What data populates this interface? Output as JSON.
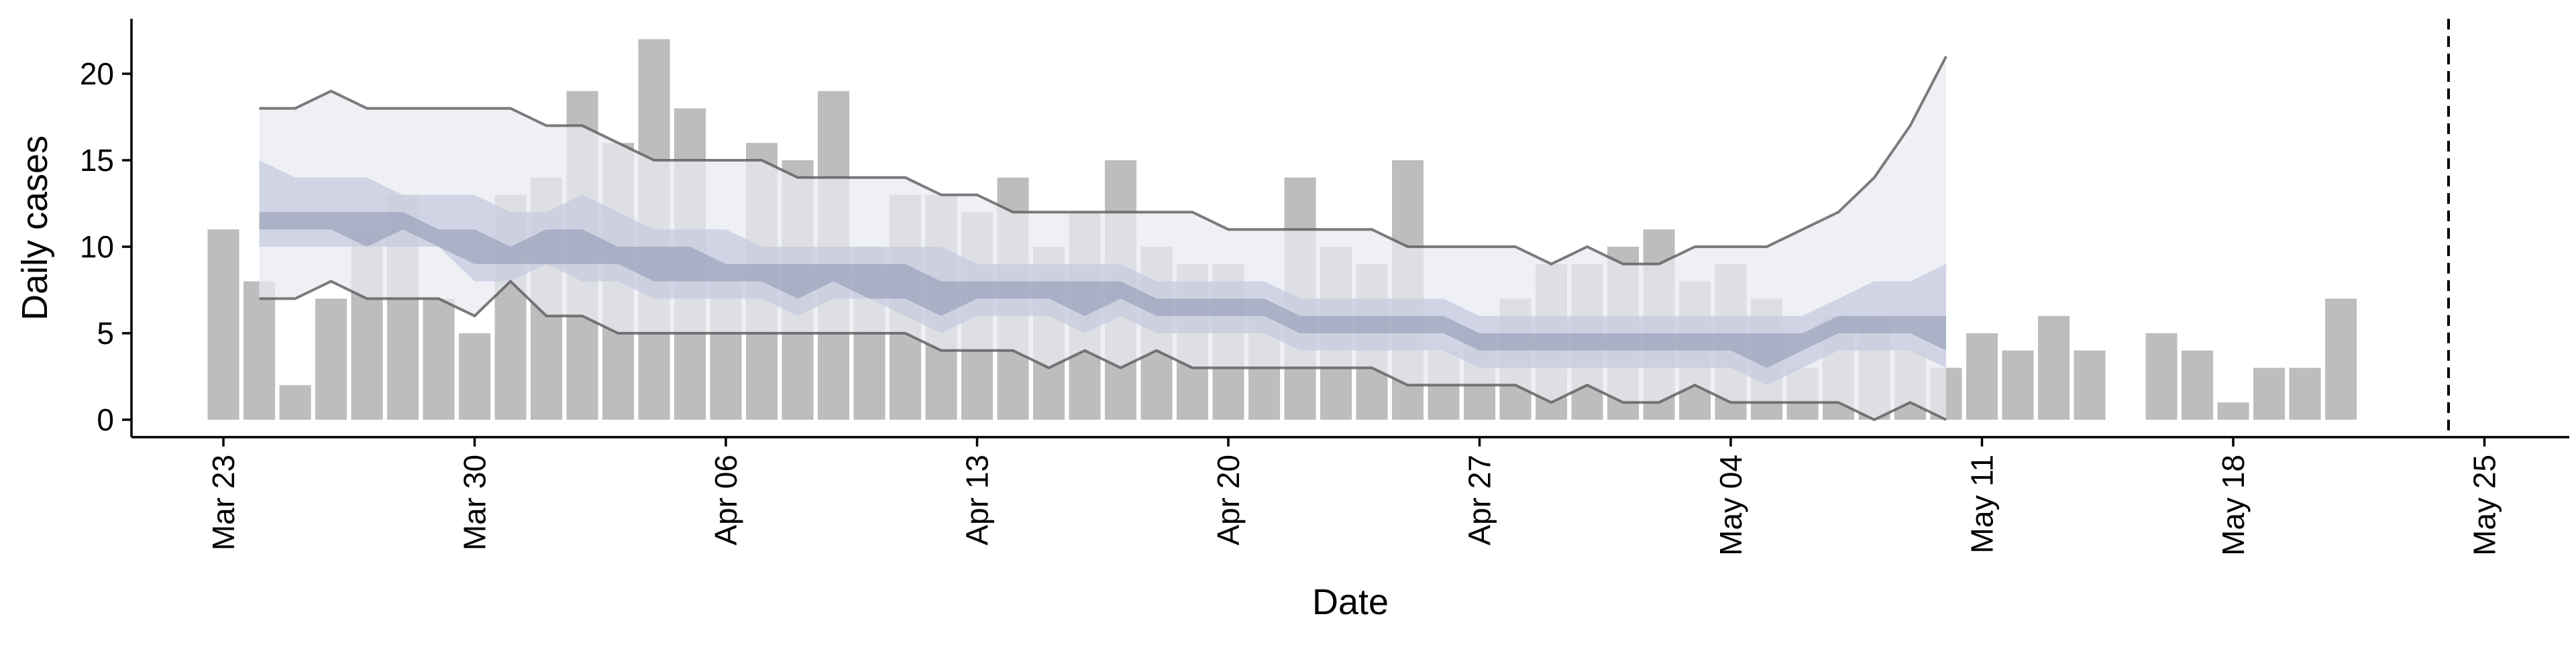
{
  "chart_data": {
    "type": "bar",
    "title": "",
    "xlabel": "Date",
    "ylabel": "Daily cases",
    "ylim": [
      -1,
      23
    ],
    "xlim": [
      "2020-03-22",
      "2020-05-26"
    ],
    "grid": false,
    "x_ticks": [
      "2020-03-23",
      "2020-03-30",
      "2020-04-06",
      "2020-04-13",
      "2020-04-20",
      "2020-04-27",
      "2020-05-04",
      "2020-05-11",
      "2020-05-18",
      "2020-05-25"
    ],
    "x_tick_labels": [
      "Mar 23",
      "Mar 30",
      "Apr 06",
      "Apr 13",
      "Apr 20",
      "Apr 27",
      "May 04",
      "May 11",
      "May 18",
      "May 25"
    ],
    "y_ticks": [
      0,
      5,
      10,
      15,
      20
    ],
    "y_tick_labels": [
      "0",
      "5",
      "10",
      "15",
      "20"
    ],
    "vline_date": "2020-05-24",
    "colors": {
      "bars": "#bdbdbd",
      "band_outer": "#e9ebf2",
      "band_middle": "#c5cbdd",
      "band_inner": "#8d94ad",
      "ci_lines": "#5b5b5b",
      "vline": "#000000",
      "axis": "#000000"
    },
    "bars": {
      "start_date": "2020-03-23",
      "values": [
        11,
        8,
        2,
        7,
        11,
        13,
        7,
        5,
        13,
        14,
        19,
        16,
        22,
        18,
        8,
        16,
        15,
        19,
        10,
        13,
        13,
        12,
        14,
        10,
        12,
        15,
        10,
        9,
        9,
        6,
        14,
        10,
        9,
        15,
        4,
        5,
        7,
        9,
        9,
        10,
        11,
        8,
        9,
        7,
        3,
        6,
        6,
        4,
        3,
        5,
        4,
        6,
        4,
        null,
        5,
        4,
        1,
        3,
        3,
        7
      ]
    },
    "bands": {
      "start_date": "2020-03-24",
      "outer_low": [
        7,
        7,
        8,
        7,
        7,
        7,
        6,
        8,
        6,
        6,
        5,
        5,
        5,
        5,
        5,
        5,
        5,
        5,
        5,
        4,
        4,
        4,
        3,
        4,
        3,
        4,
        3,
        3,
        3,
        3,
        3,
        3,
        2,
        2,
        2,
        2,
        1,
        2,
        1,
        1,
        2,
        1,
        1,
        1,
        1,
        0,
        1,
        0
      ],
      "outer_high": [
        18,
        18,
        19,
        18,
        18,
        18,
        18,
        18,
        17,
        17,
        16,
        15,
        15,
        15,
        15,
        14,
        14,
        14,
        14,
        13,
        13,
        12,
        12,
        12,
        12,
        12,
        12,
        11,
        11,
        11,
        11,
        11,
        10,
        10,
        10,
        10,
        9,
        10,
        9,
        9,
        10,
        10,
        10,
        11,
        12,
        14,
        17,
        21
      ],
      "middle_low": [
        10,
        10,
        10,
        10,
        10,
        10,
        8,
        8,
        9,
        8,
        8,
        7,
        7,
        7,
        7,
        6,
        7,
        7,
        6,
        5,
        6,
        6,
        6,
        5,
        6,
        5,
        5,
        5,
        5,
        4,
        4,
        4,
        4,
        4,
        3,
        3,
        3,
        3,
        3,
        3,
        3,
        3,
        2,
        3,
        4,
        4,
        4,
        3
      ],
      "middle_high": [
        15,
        14,
        14,
        14,
        13,
        13,
        13,
        12,
        12,
        13,
        12,
        11,
        11,
        11,
        10,
        10,
        10,
        10,
        10,
        10,
        9,
        9,
        9,
        9,
        9,
        8,
        8,
        8,
        8,
        7,
        7,
        7,
        7,
        7,
        6,
        6,
        6,
        6,
        6,
        6,
        6,
        6,
        6,
        6,
        7,
        8,
        8,
        9
      ],
      "inner_low": [
        11,
        11,
        11,
        10,
        11,
        10,
        9,
        9,
        9,
        9,
        9,
        8,
        8,
        8,
        8,
        7,
        8,
        7,
        7,
        6,
        7,
        7,
        7,
        6,
        7,
        6,
        6,
        6,
        6,
        5,
        5,
        5,
        5,
        5,
        4,
        4,
        4,
        4,
        4,
        4,
        4,
        4,
        3,
        4,
        5,
        5,
        5,
        4
      ],
      "inner_high": [
        12,
        12,
        12,
        12,
        12,
        11,
        11,
        10,
        11,
        11,
        10,
        10,
        10,
        9,
        9,
        9,
        9,
        9,
        9,
        8,
        8,
        8,
        8,
        8,
        8,
        7,
        7,
        7,
        7,
        6,
        6,
        6,
        6,
        6,
        5,
        5,
        5,
        5,
        5,
        5,
        5,
        5,
        5,
        5,
        6,
        6,
        6,
        6
      ]
    }
  }
}
